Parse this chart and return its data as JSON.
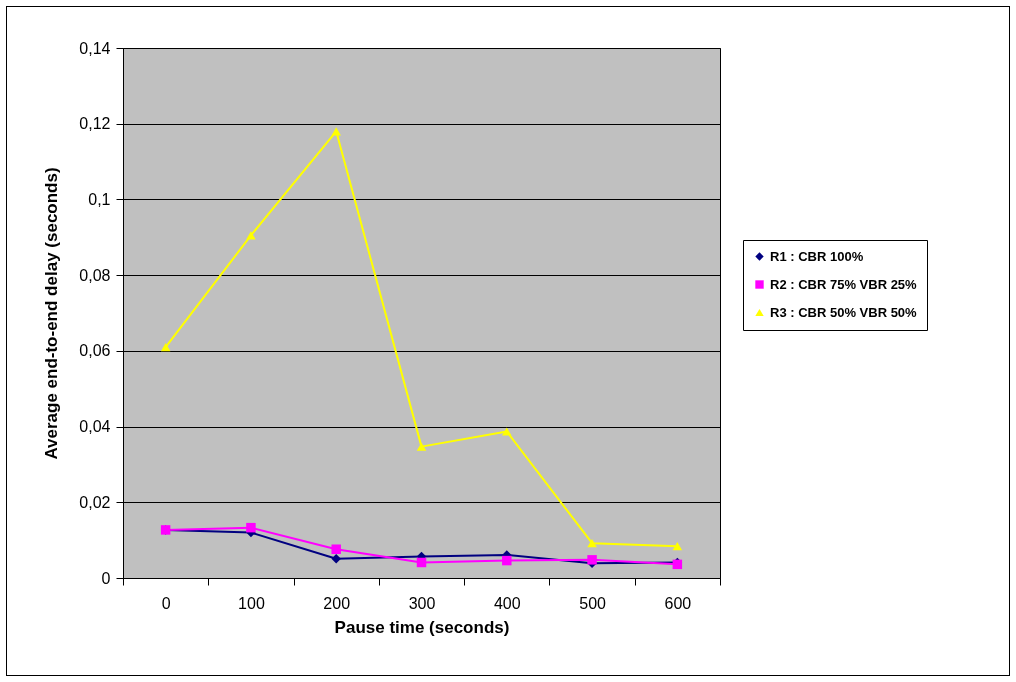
{
  "chart_data": {
    "type": "line",
    "xlabel": "Pause time  (seconds)",
    "ylabel": "Average end-to-end delay (seconds)",
    "categories": [
      "0",
      "100",
      "200",
      "300",
      "400",
      "500",
      "600"
    ],
    "series": [
      {
        "name": "R1 : CBR 100%",
        "color": "#000080",
        "marker": "diamond",
        "values": [
          0.0127,
          0.012,
          0.0051,
          0.0057,
          0.0061,
          0.0039,
          0.0041
        ]
      },
      {
        "name": "R2 : CBR 75% VBR 25%",
        "color": "#ff00ff",
        "marker": "square",
        "values": [
          0.0127,
          0.0133,
          0.0076,
          0.0041,
          0.0046,
          0.0048,
          0.0036
        ]
      },
      {
        "name": "R3 : CBR 50% VBR 50%",
        "color": "#ffff00",
        "marker": "triangle",
        "values": [
          0.061,
          0.0905,
          0.118,
          0.0347,
          0.0387,
          0.0092,
          0.0084
        ]
      }
    ],
    "ylim": [
      0,
      0.14
    ],
    "yticks": [
      {
        "value": 0,
        "label": "0"
      },
      {
        "value": 0.02,
        "label": "0,02"
      },
      {
        "value": 0.04,
        "label": "0,04"
      },
      {
        "value": 0.06,
        "label": "0,06"
      },
      {
        "value": 0.08,
        "label": "0,08"
      },
      {
        "value": 0.1,
        "label": "0,1"
      },
      {
        "value": 0.12,
        "label": "0,12"
      },
      {
        "value": 0.14,
        "label": "0,14"
      }
    ],
    "grid": "y",
    "legend": "right",
    "line_style": "solid"
  }
}
